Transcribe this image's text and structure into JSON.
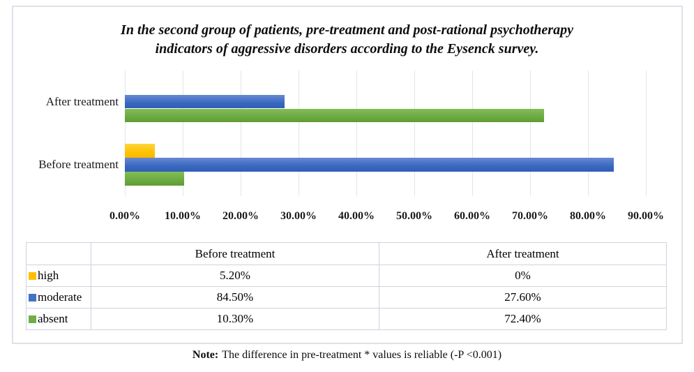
{
  "title": {
    "lines": [
      "In the second group of patients, pre-treatment and post-rational psychotherapy",
      "indicators of aggressive disorders according to the Eysenck survey."
    ]
  },
  "chart_data": {
    "type": "bar",
    "orientation": "horizontal",
    "title": "In the second group of patients, pre-treatment and post-rational psychotherapy indicators of aggressive disorders according to the Eysenck survey.",
    "categories": [
      "After treatment",
      "Before treatment"
    ],
    "series": [
      {
        "name": "high",
        "color": "#FFC000",
        "values": [
          0,
          5.2
        ]
      },
      {
        "name": "moderate",
        "color": "#4472C4",
        "values": [
          27.6,
          84.5
        ]
      },
      {
        "name": "absent",
        "color": "#70AD47",
        "values": [
          72.4,
          10.3
        ]
      }
    ],
    "xlabel": "",
    "ylabel": "",
    "xlim": [
      0,
      90
    ],
    "x_ticks": [
      "0.00%",
      "10.00%",
      "20.00%",
      "30.00%",
      "40.00%",
      "50.00%",
      "60.00%",
      "70.00%",
      "80.00%",
      "90.00%"
    ],
    "grid": true,
    "legend_position": "table-left",
    "value_unit": "%"
  },
  "table": {
    "headers": [
      "",
      "Before treatment",
      "After treatment"
    ],
    "rows": [
      {
        "label": "high",
        "color": "#FFC000",
        "values": [
          "5.20%",
          "0%"
        ]
      },
      {
        "label": "moderate",
        "color": "#4472C4",
        "values": [
          "84.50%",
          "27.60%"
        ]
      },
      {
        "label": "absent",
        "color": "#70AD47",
        "values": [
          "10.30%",
          "72.40%"
        ]
      }
    ]
  },
  "note": {
    "prefix": "Note:",
    "text": "The difference in pre-treatment * values is reliable (-P <0.001)"
  }
}
